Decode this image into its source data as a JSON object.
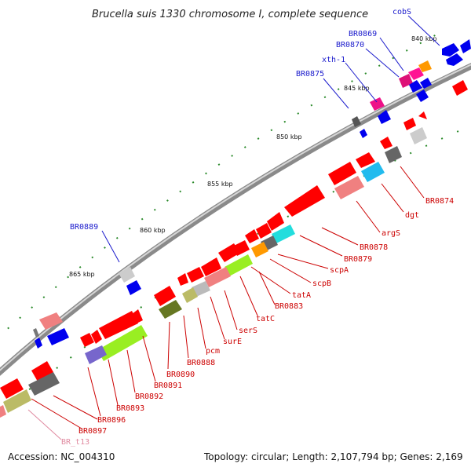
{
  "header": {
    "title": "Brucella suis 1330 chromosome I, complete sequence"
  },
  "axis": {
    "ticks": [
      "840 kbp",
      "845 kbp",
      "850 kbp",
      "855 kbp",
      "860 kbp",
      "865 kbp"
    ]
  },
  "gene_labels": {
    "blue": [
      "cobS",
      "BR0869",
      "BR0870",
      "xth-1",
      "BR0875",
      "BR0889"
    ],
    "red": [
      "BR0874",
      "dgt",
      "argS",
      "BR0878",
      "BR0879",
      "scpA",
      "scpB",
      "tatA",
      "BR0883",
      "tatC",
      "serS",
      "surE",
      "pcm",
      "BR0888",
      "BR0890",
      "BR0891",
      "BR0892",
      "BR0893",
      "BR0896",
      "BR0897"
    ],
    "pink": [
      "BR_t13"
    ]
  },
  "colors": {
    "protein_coding": "#ff0000",
    "other_strand": "#0000ee",
    "rna": "#ff99aa",
    "grey": "#999999",
    "track": "#888888"
  },
  "footer": {
    "accession": "Accession: NC_004310",
    "summary": "Topology: circular; Length: 2,107,794 bp; Genes: 2,169"
  }
}
